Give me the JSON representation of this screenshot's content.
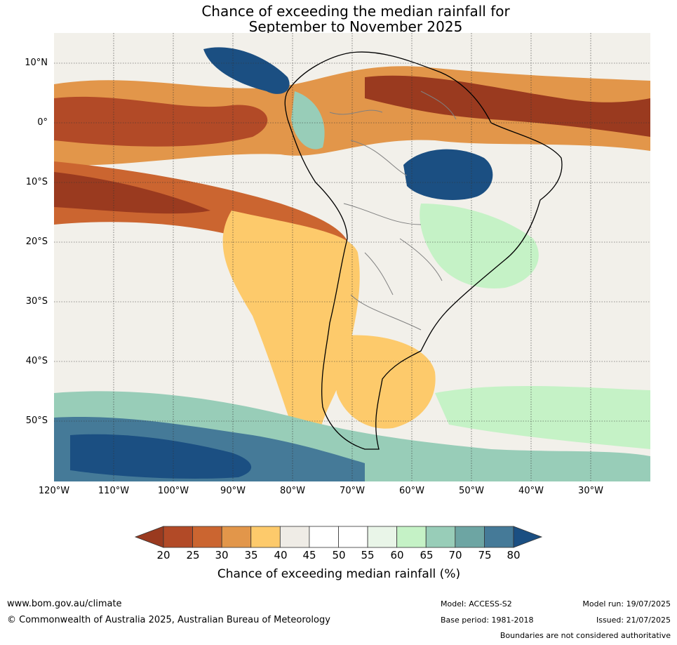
{
  "title": {
    "line1": "Chance of exceeding the median rainfall for",
    "line2": "September to November 2025"
  },
  "map": {
    "region": "South America",
    "lat_labels": [
      "10°N",
      "0°",
      "10°S",
      "20°S",
      "30°S",
      "40°S",
      "50°S"
    ],
    "lon_labels": [
      "120°W",
      "110°W",
      "100°W",
      "90°W",
      "80°W",
      "70°W",
      "60°W",
      "50°W",
      "40°W",
      "30°W"
    ],
    "background_color": "#f2f0ea"
  },
  "colorbar": {
    "ticks": [
      "20",
      "25",
      "30",
      "35",
      "40",
      "45",
      "50",
      "55",
      "60",
      "65",
      "70",
      "75",
      "80"
    ],
    "colors": [
      "#9a3a1f",
      "#b24a27",
      "#cb6530",
      "#e2964a",
      "#fdca6b",
      "#efece6",
      "#ffffff",
      "#ffffff",
      "#e9f5e8",
      "#c5f2c6",
      "#98cdb8",
      "#6da5a3",
      "#457a98",
      "#1b4f82"
    ],
    "title": "Chance of exceeding median rainfall (%)"
  },
  "footer": {
    "url": "www.bom.gov.au/climate",
    "copyright": "© Commonwealth of Australia 2025, Australian Bureau of Meteorology",
    "model": "Model: ACCESS-S2",
    "base_period": "Base period: 1981-2018",
    "model_run": "Model run: 19/07/2025",
    "issued": "Issued: 21/07/2025",
    "disclaimer": "Boundaries are not considered authoritative"
  }
}
